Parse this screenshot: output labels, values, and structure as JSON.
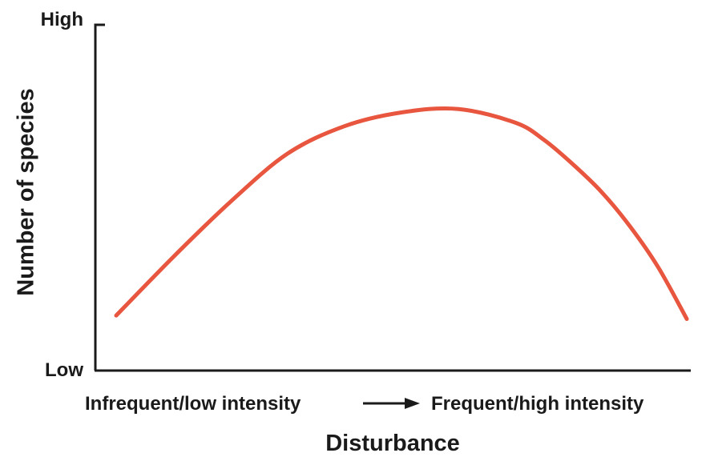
{
  "chart_data": {
    "type": "line",
    "title": "",
    "xlabel": "Disturbance",
    "ylabel": "Number of species",
    "x_axis_range_labels": {
      "start": "Infrequent/low intensity",
      "end": "Frequent/high intensity"
    },
    "y_ticks": {
      "high": "High",
      "low": "Low"
    },
    "xlim": [
      0,
      1
    ],
    "ylim": [
      0,
      1
    ],
    "grid": false,
    "legend": "none",
    "series": [
      {
        "color": "#e8563f",
        "x": [
          0.0,
          0.1,
          0.2,
          0.3,
          0.4,
          0.5,
          0.6,
          0.7,
          0.75,
          0.8,
          0.85,
          0.9,
          0.95,
          1.0
        ],
        "y": [
          0.16,
          0.33,
          0.49,
          0.63,
          0.71,
          0.75,
          0.76,
          0.72,
          0.67,
          0.6,
          0.52,
          0.42,
          0.3,
          0.15
        ]
      }
    ]
  }
}
